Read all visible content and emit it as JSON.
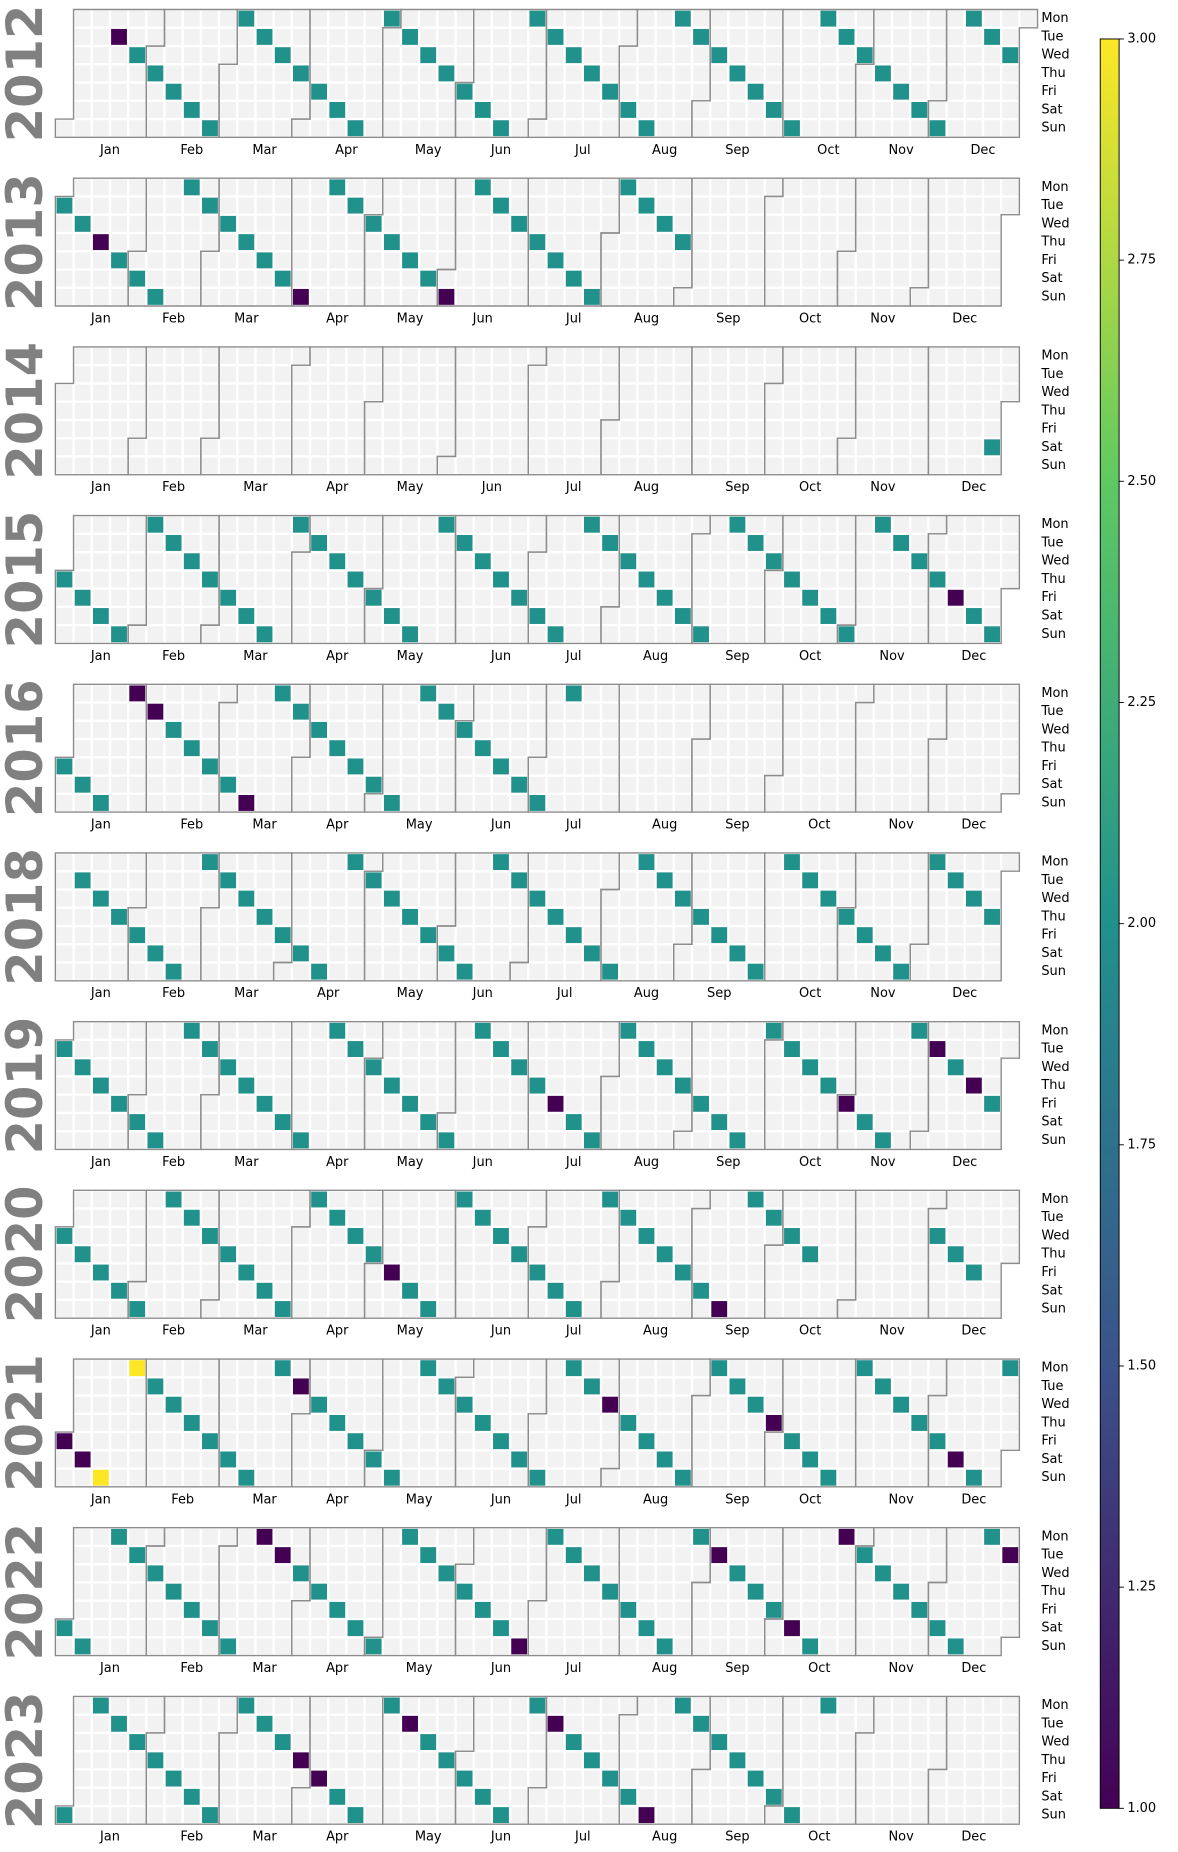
{
  "chart_data": {
    "type": "calendar",
    "colormap": "viridis",
    "vlim": [
      1,
      3
    ],
    "colorbar_ticks": [
      {
        "value": 1,
        "label": "1.00"
      },
      {
        "value": 1.25,
        "label": "1.25"
      },
      {
        "value": 1.5,
        "label": "1.50"
      },
      {
        "value": 1.75,
        "label": "1.75"
      },
      {
        "value": 2,
        "label": "2.00"
      },
      {
        "value": 2.25,
        "label": "2.25"
      },
      {
        "value": 2.5,
        "label": "2.50"
      },
      {
        "value": 2.75,
        "label": "2.75"
      },
      {
        "value": 3,
        "label": "3.00"
      }
    ],
    "weekdays": [
      "Mon",
      "Tue",
      "Wed",
      "Thu",
      "Fri",
      "Sat",
      "Sun"
    ],
    "months": [
      "Jan",
      "Feb",
      "Mar",
      "Apr",
      "May",
      "Jun",
      "Jul",
      "Aug",
      "Sep",
      "Oct",
      "Nov",
      "Dec"
    ],
    "empty_color": "#f2f2f2",
    "outline_color": "#8c8c8c",
    "years": [
      {
        "name": "2012",
        "x": [
          "2012-01-17",
          "2012-01-25",
          "2012-02-02",
          "2012-02-10",
          "2012-02-18",
          "2012-02-26",
          "2012-03-05",
          "2012-03-13",
          "2012-03-21",
          "2012-03-29",
          "2012-04-06",
          "2012-04-14",
          "2012-04-22",
          "2012-04-30",
          "2012-05-08",
          "2012-05-16",
          "2012-05-24",
          "2012-06-01",
          "2012-06-09",
          "2012-06-17",
          "2012-06-25",
          "2012-07-03",
          "2012-07-11",
          "2012-07-19",
          "2012-07-27",
          "2012-08-04",
          "2012-08-12",
          "2012-08-20",
          "2012-08-28",
          "2012-09-05",
          "2012-09-13",
          "2012-09-21",
          "2012-09-29",
          "2012-10-07",
          "2012-10-15",
          "2012-10-23",
          "2012-10-31",
          "2012-11-08",
          "2012-11-16",
          "2012-11-24",
          "2012-12-02",
          "2012-12-10",
          "2012-12-18",
          "2012-12-26"
        ],
        "values": [
          1,
          2,
          2,
          2,
          2,
          2,
          2,
          2,
          2,
          2,
          2,
          2,
          2,
          2,
          2,
          2,
          2,
          2,
          2,
          2,
          2,
          2,
          2,
          2,
          2,
          2,
          2,
          2,
          2,
          2,
          2,
          2,
          2,
          2,
          2,
          2,
          2,
          2,
          2,
          2,
          2,
          2,
          2,
          2
        ]
      },
      {
        "name": "2013",
        "x": [
          "2013-01-01",
          "2013-01-09",
          "2013-01-17",
          "2013-01-25",
          "2013-02-02",
          "2013-02-10",
          "2013-02-18",
          "2013-02-26",
          "2013-03-06",
          "2013-03-14",
          "2013-03-22",
          "2013-03-30",
          "2013-04-07",
          "2013-04-15",
          "2013-04-23",
          "2013-05-01",
          "2013-05-09",
          "2013-05-17",
          "2013-05-25",
          "2013-06-02",
          "2013-06-10",
          "2013-06-18",
          "2013-06-26",
          "2013-07-04",
          "2013-07-12",
          "2013-07-20",
          "2013-07-28",
          "2013-08-05",
          "2013-08-13",
          "2013-08-21",
          "2013-08-29"
        ],
        "values": [
          2,
          2,
          1,
          2,
          2,
          2,
          2,
          2,
          2,
          2,
          2,
          2,
          1,
          2,
          2,
          2,
          2,
          2,
          2,
          1,
          2,
          2,
          2,
          2,
          2,
          2,
          2,
          2,
          2,
          2,
          2
        ]
      },
      {
        "name": "2014",
        "x": [
          "2014-12-27"
        ],
        "values": [
          2
        ]
      },
      {
        "name": "2015",
        "x": [
          "2015-01-01",
          "2015-01-09",
          "2015-01-17",
          "2015-01-25",
          "2015-02-02",
          "2015-02-10",
          "2015-02-18",
          "2015-02-26",
          "2015-03-06",
          "2015-03-14",
          "2015-03-22",
          "2015-03-30",
          "2015-04-07",
          "2015-04-15",
          "2015-04-23",
          "2015-05-01",
          "2015-05-09",
          "2015-05-17",
          "2015-05-25",
          "2015-06-02",
          "2015-06-10",
          "2015-06-18",
          "2015-06-26",
          "2015-07-04",
          "2015-07-12",
          "2015-07-20",
          "2015-07-28",
          "2015-08-05",
          "2015-08-13",
          "2015-08-21",
          "2015-08-29",
          "2015-09-06",
          "2015-09-14",
          "2015-09-22",
          "2015-09-30",
          "2015-10-08",
          "2015-10-16",
          "2015-10-24",
          "2015-11-01",
          "2015-11-09",
          "2015-11-17",
          "2015-11-25",
          "2015-12-03",
          "2015-12-11",
          "2015-12-19",
          "2015-12-27"
        ],
        "values": [
          2,
          2,
          2,
          2,
          2,
          2,
          2,
          2,
          2,
          2,
          2,
          2,
          2,
          2,
          2,
          2,
          2,
          2,
          2,
          2,
          2,
          2,
          2,
          2,
          2,
          2,
          2,
          2,
          2,
          2,
          2,
          2,
          2,
          2,
          2,
          2,
          2,
          2,
          2,
          2,
          2,
          2,
          2,
          1,
          2,
          2
        ]
      },
      {
        "name": "2016",
        "x": [
          "2016-01-01",
          "2016-01-09",
          "2016-01-17",
          "2016-01-25",
          "2016-02-02",
          "2016-02-10",
          "2016-02-18",
          "2016-02-26",
          "2016-03-05",
          "2016-03-13",
          "2016-03-21",
          "2016-03-29",
          "2016-04-06",
          "2016-04-14",
          "2016-04-22",
          "2016-04-30",
          "2016-05-08",
          "2016-05-16",
          "2016-05-24",
          "2016-06-01",
          "2016-06-09",
          "2016-06-17",
          "2016-06-25",
          "2016-07-03",
          "2016-07-11"
        ],
        "values": [
          2,
          2,
          2,
          1,
          1,
          2,
          2,
          2,
          2,
          1,
          2,
          2,
          2,
          2,
          2,
          2,
          2,
          2,
          2,
          2,
          2,
          2,
          2,
          2,
          2
        ]
      },
      {
        "name": "2018",
        "x": [
          "2018-01-09",
          "2018-01-17",
          "2018-01-25",
          "2018-02-02",
          "2018-02-10",
          "2018-02-18",
          "2018-02-26",
          "2018-03-06",
          "2018-03-14",
          "2018-03-22",
          "2018-03-30",
          "2018-04-07",
          "2018-04-15",
          "2018-04-23",
          "2018-05-01",
          "2018-05-09",
          "2018-05-17",
          "2018-05-25",
          "2018-06-02",
          "2018-06-10",
          "2018-06-18",
          "2018-06-26",
          "2018-07-04",
          "2018-07-12",
          "2018-07-20",
          "2018-07-28",
          "2018-08-05",
          "2018-08-13",
          "2018-08-21",
          "2018-08-29",
          "2018-09-06",
          "2018-09-14",
          "2018-09-22",
          "2018-09-30",
          "2018-10-08",
          "2018-10-16",
          "2018-10-24",
          "2018-11-01",
          "2018-11-09",
          "2018-11-17",
          "2018-11-25",
          "2018-12-03",
          "2018-12-11",
          "2018-12-19",
          "2018-12-27"
        ],
        "values": [
          2,
          2,
          2,
          2,
          2,
          2,
          2,
          2,
          2,
          2,
          2,
          2,
          2,
          2,
          2,
          2,
          2,
          2,
          2,
          2,
          2,
          2,
          2,
          2,
          2,
          2,
          2,
          2,
          2,
          2,
          2,
          2,
          2,
          2,
          2,
          2,
          2,
          2,
          2,
          2,
          2,
          2,
          2,
          2,
          2
        ]
      },
      {
        "name": "2019",
        "x": [
          "2019-01-01",
          "2019-01-09",
          "2019-01-17",
          "2019-01-25",
          "2019-02-02",
          "2019-02-10",
          "2019-02-18",
          "2019-02-26",
          "2019-03-06",
          "2019-03-14",
          "2019-03-22",
          "2019-03-30",
          "2019-04-07",
          "2019-04-15",
          "2019-04-23",
          "2019-05-01",
          "2019-05-09",
          "2019-05-17",
          "2019-05-25",
          "2019-06-02",
          "2019-06-10",
          "2019-06-18",
          "2019-06-26",
          "2019-07-04",
          "2019-07-12",
          "2019-07-20",
          "2019-07-28",
          "2019-08-05",
          "2019-08-13",
          "2019-08-21",
          "2019-08-29",
          "2019-09-06",
          "2019-09-14",
          "2019-09-22",
          "2019-09-30",
          "2019-10-08",
          "2019-10-16",
          "2019-10-24",
          "2019-11-01",
          "2019-11-09",
          "2019-11-17",
          "2019-11-25",
          "2019-12-03",
          "2019-12-11",
          "2019-12-19",
          "2019-12-27"
        ],
        "values": [
          2,
          2,
          2,
          2,
          2,
          2,
          2,
          2,
          2,
          2,
          2,
          2,
          2,
          2,
          2,
          2,
          2,
          2,
          2,
          2,
          2,
          2,
          2,
          2,
          1,
          2,
          2,
          2,
          2,
          2,
          2,
          2,
          2,
          2,
          2,
          2,
          2,
          2,
          1,
          2,
          2,
          2,
          1,
          2,
          1,
          2
        ]
      },
      {
        "name": "2020",
        "x": [
          "2020-01-01",
          "2020-01-09",
          "2020-01-17",
          "2020-01-25",
          "2020-02-02",
          "2020-02-10",
          "2020-02-18",
          "2020-02-26",
          "2020-03-05",
          "2020-03-13",
          "2020-03-21",
          "2020-03-29",
          "2020-04-06",
          "2020-04-14",
          "2020-04-22",
          "2020-04-30",
          "2020-05-08",
          "2020-05-16",
          "2020-05-24",
          "2020-06-01",
          "2020-06-09",
          "2020-06-17",
          "2020-06-25",
          "2020-07-03",
          "2020-07-11",
          "2020-07-19",
          "2020-07-27",
          "2020-08-04",
          "2020-08-12",
          "2020-08-20",
          "2020-08-28",
          "2020-09-05",
          "2020-09-13",
          "2020-09-21",
          "2020-09-29",
          "2020-10-07",
          "2020-10-15",
          "2020-12-02",
          "2020-12-10",
          "2020-12-18"
        ],
        "values": [
          2,
          2,
          2,
          2,
          2,
          2,
          2,
          2,
          2,
          2,
          2,
          2,
          2,
          2,
          2,
          2,
          1,
          2,
          2,
          2,
          2,
          2,
          2,
          2,
          2,
          2,
          2,
          2,
          2,
          2,
          2,
          2,
          1,
          2,
          2,
          2,
          2,
          2,
          2,
          2
        ]
      },
      {
        "name": "2021",
        "x": [
          "2021-01-01",
          "2021-01-09",
          "2021-01-17",
          "2021-01-25",
          "2021-02-02",
          "2021-02-10",
          "2021-02-18",
          "2021-02-26",
          "2021-03-06",
          "2021-03-14",
          "2021-03-22",
          "2021-03-30",
          "2021-04-07",
          "2021-04-15",
          "2021-04-23",
          "2021-05-01",
          "2021-05-09",
          "2021-05-17",
          "2021-05-25",
          "2021-06-02",
          "2021-06-10",
          "2021-06-18",
          "2021-06-26",
          "2021-07-04",
          "2021-07-12",
          "2021-07-20",
          "2021-07-28",
          "2021-08-05",
          "2021-08-13",
          "2021-08-21",
          "2021-08-29",
          "2021-09-06",
          "2021-09-14",
          "2021-09-22",
          "2021-09-30",
          "2021-10-08",
          "2021-10-16",
          "2021-10-24",
          "2021-11-01",
          "2021-11-09",
          "2021-11-17",
          "2021-11-25",
          "2021-12-03",
          "2021-12-11",
          "2021-12-19",
          "2021-12-27"
        ],
        "values": [
          1,
          1,
          3,
          3,
          2,
          2,
          2,
          2,
          2,
          2,
          2,
          1,
          2,
          2,
          2,
          2,
          2,
          2,
          2,
          2,
          2,
          2,
          2,
          2,
          2,
          2,
          1,
          2,
          2,
          2,
          2,
          2,
          2,
          2,
          1,
          2,
          2,
          2,
          2,
          2,
          2,
          2,
          2,
          1,
          2,
          2
        ]
      },
      {
        "name": "2022",
        "x": [
          "2022-01-01",
          "2022-01-09",
          "2022-01-17",
          "2022-01-25",
          "2022-02-02",
          "2022-02-10",
          "2022-02-18",
          "2022-02-26",
          "2022-03-06",
          "2022-03-14",
          "2022-03-22",
          "2022-03-30",
          "2022-04-07",
          "2022-04-15",
          "2022-04-23",
          "2022-05-01",
          "2022-05-09",
          "2022-05-17",
          "2022-05-25",
          "2022-06-02",
          "2022-06-10",
          "2022-06-18",
          "2022-06-26",
          "2022-07-04",
          "2022-07-12",
          "2022-07-20",
          "2022-07-28",
          "2022-08-05",
          "2022-08-13",
          "2022-08-21",
          "2022-08-29",
          "2022-09-06",
          "2022-09-14",
          "2022-09-22",
          "2022-09-30",
          "2022-10-08",
          "2022-10-16",
          "2022-10-24",
          "2022-11-01",
          "2022-11-09",
          "2022-11-17",
          "2022-11-25",
          "2022-12-03",
          "2022-12-11",
          "2022-12-19",
          "2022-12-27"
        ],
        "values": [
          2,
          2,
          2,
          2,
          2,
          2,
          2,
          2,
          2,
          1,
          1,
          2,
          2,
          2,
          2,
          2,
          2,
          2,
          2,
          2,
          2,
          2,
          1,
          2,
          2,
          2,
          2,
          2,
          2,
          2,
          2,
          1,
          2,
          2,
          2,
          1,
          2,
          1,
          2,
          2,
          2,
          2,
          2,
          2,
          2,
          1
        ]
      },
      {
        "name": "2023",
        "x": [
          "2023-01-01",
          "2023-01-09",
          "2023-01-17",
          "2023-01-25",
          "2023-02-02",
          "2023-02-10",
          "2023-02-18",
          "2023-02-26",
          "2023-03-06",
          "2023-03-14",
          "2023-03-22",
          "2023-03-30",
          "2023-04-07",
          "2023-04-15",
          "2023-04-23",
          "2023-05-01",
          "2023-05-09",
          "2023-05-17",
          "2023-05-25",
          "2023-06-02",
          "2023-06-10",
          "2023-06-18",
          "2023-06-26",
          "2023-07-04",
          "2023-07-12",
          "2023-07-20",
          "2023-07-28",
          "2023-08-05",
          "2023-08-13",
          "2023-08-21",
          "2023-08-29",
          "2023-09-06",
          "2023-09-14",
          "2023-09-22",
          "2023-09-30",
          "2023-10-08",
          "2023-10-16"
        ],
        "values": [
          2,
          2,
          2,
          2,
          2,
          2,
          2,
          2,
          2,
          2,
          2,
          1,
          1,
          2,
          2,
          2,
          1,
          2,
          2,
          2,
          2,
          2,
          2,
          1,
          2,
          2,
          2,
          2,
          1,
          2,
          2,
          2,
          2,
          2,
          2,
          2,
          2
        ]
      }
    ]
  }
}
